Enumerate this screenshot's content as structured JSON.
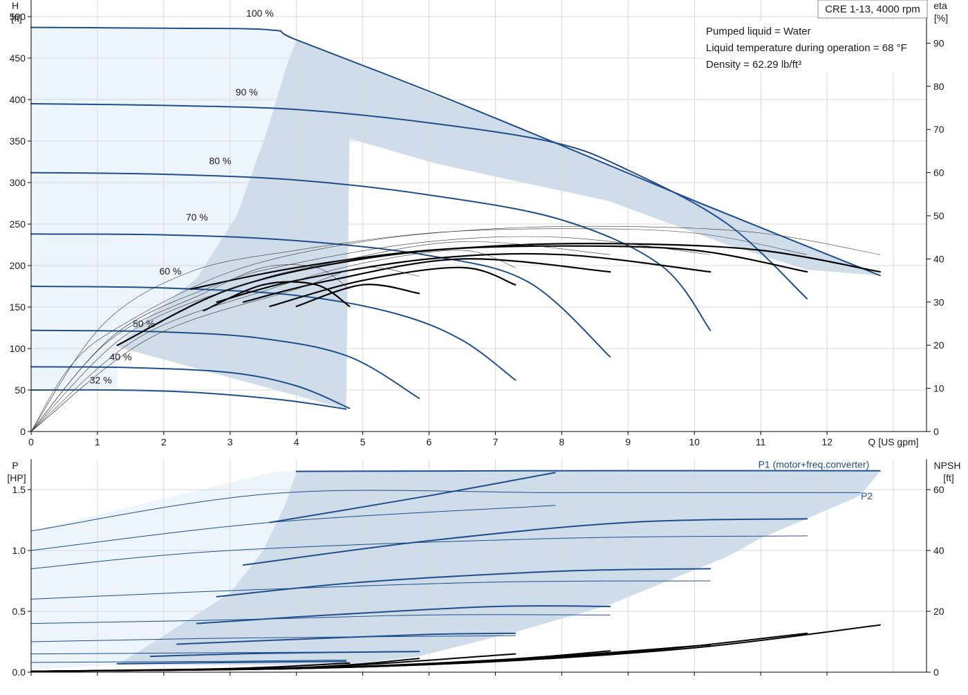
{
  "header": {
    "model": "CRE 1-13, 4000 rpm",
    "info_lines": [
      "Pumped liquid = Water",
      "Liquid temperature during operation = 68 °F",
      "Density = 62.29 lb/ft³"
    ]
  },
  "colors": {
    "curve_blue": "#1f4e8c",
    "region_fill": "#cfdce9",
    "region_light": "#ecf4fc",
    "grid": "#d9d9d9",
    "efficiency": "#000000",
    "thin_eff": "#333333"
  },
  "chart_data": [
    {
      "type": "line",
      "name": "head-efficiency",
      "y_title_top": "H",
      "y_unit": "[ft]",
      "y2_title": "eta",
      "y2_unit": "[%]",
      "xlabel": "Q [US gpm]",
      "xlim": [
        0,
        13.5
      ],
      "ylim": [
        0,
        520
      ],
      "y2lim": [
        0,
        100
      ],
      "x_ticks": [
        0,
        1,
        2,
        3,
        4,
        5,
        6,
        7,
        8,
        9,
        10,
        11,
        12
      ],
      "x_tick_labels": [
        "0",
        "1",
        "2",
        "3",
        "4",
        "5",
        "6",
        "7",
        "8",
        "9",
        "10",
        "11",
        "12"
      ],
      "y_ticks": [
        0,
        50,
        100,
        150,
        200,
        250,
        300,
        350,
        400,
        450,
        500
      ],
      "y_tick_labels": [
        "0",
        "50",
        "100",
        "150",
        "200",
        "250",
        "300",
        "350",
        "400",
        "450",
        "500"
      ],
      "y2_ticks": [
        0,
        10,
        20,
        30,
        40,
        50,
        60,
        70,
        80,
        90
      ],
      "y2_tick_labels": [
        "0",
        "10",
        "20",
        "30",
        "40",
        "50",
        "60",
        "70",
        "80",
        "90"
      ],
      "grid": true,
      "speed_labels": [
        {
          "text": "100 %",
          "x": 3.45,
          "y": 500
        },
        {
          "text": "90 %",
          "x": 3.25,
          "y": 405
        },
        {
          "text": "80 %",
          "x": 2.85,
          "y": 322
        },
        {
          "text": "70 %",
          "x": 2.5,
          "y": 254
        },
        {
          "text": "60 %",
          "x": 2.1,
          "y": 189
        },
        {
          "text": "50 %",
          "x": 1.7,
          "y": 126
        },
        {
          "text": "40 %",
          "x": 1.35,
          "y": 86
        },
        {
          "text": "32 %",
          "x": 1.05,
          "y": 58
        }
      ],
      "envelope": {
        "dark": [
          [
            1.3,
            102
          ],
          [
            1.8,
            140
          ],
          [
            2.5,
            185
          ],
          [
            3.1,
            260
          ],
          [
            3.55,
            360
          ],
          [
            3.85,
            440
          ],
          [
            4.0,
            472
          ],
          [
            7.9,
            348
          ],
          [
            12.8,
            188
          ],
          [
            11.7,
            195
          ],
          [
            10.5,
            225
          ],
          [
            8.7,
            278
          ],
          [
            7.3,
            302
          ],
          [
            6.1,
            323
          ],
          [
            4.8,
            353
          ],
          [
            4.75,
            27
          ]
        ],
        "light": [
          [
            0,
            0
          ],
          [
            0,
            487
          ],
          [
            3.6,
            484
          ],
          [
            4.0,
            472
          ],
          [
            3.85,
            440
          ],
          [
            3.55,
            360
          ],
          [
            3.1,
            260
          ],
          [
            2.5,
            185
          ],
          [
            1.8,
            140
          ],
          [
            1.3,
            102
          ],
          [
            1.3,
            52
          ],
          [
            0,
            52
          ]
        ]
      },
      "series": [
        {
          "name": "100 %",
          "kind": "head",
          "x": [
            0,
            2,
            3.6,
            4.0,
            6,
            7.9,
            10,
            12.8
          ],
          "values": [
            487,
            486,
            484,
            472,
            410,
            348,
            278,
            188
          ]
        },
        {
          "name": "90 %",
          "kind": "head",
          "x": [
            0,
            2,
            4,
            6,
            7.9,
            9,
            10.5,
            11.7
          ],
          "values": [
            395,
            393,
            388,
            372,
            348,
            315,
            250,
            160
          ]
        },
        {
          "name": "80 %",
          "kind": "head",
          "x": [
            0,
            2,
            4,
            6,
            8,
            9.5,
            10.24
          ],
          "values": [
            312,
            310,
            303,
            285,
            255,
            200,
            122
          ]
        },
        {
          "name": "70 %",
          "kind": "head",
          "x": [
            0,
            2,
            4,
            6,
            7.5,
            8.73
          ],
          "values": [
            238,
            237,
            230,
            212,
            180,
            90
          ]
        },
        {
          "name": "60 %",
          "kind": "head",
          "x": [
            0,
            2,
            4,
            5.5,
            6.5,
            7.3
          ],
          "values": [
            175,
            173,
            164,
            142,
            110,
            62
          ]
        },
        {
          "name": "50 %",
          "kind": "head",
          "x": [
            0,
            2,
            3.5,
            4.8,
            5.85
          ],
          "values": [
            122,
            120,
            112,
            90,
            40
          ]
        },
        {
          "name": "40 %",
          "kind": "head",
          "x": [
            0,
            1.5,
            3,
            4,
            4.8
          ],
          "values": [
            78,
            77,
            71,
            55,
            28
          ]
        },
        {
          "name": "32 %",
          "kind": "head",
          "x": [
            0,
            1.3,
            2.5,
            3.8,
            4.75
          ],
          "values": [
            50,
            50,
            47,
            38,
            27
          ]
        },
        {
          "name": "eta 100 %",
          "kind": "eta",
          "x": [
            1.3,
            3,
            5,
            7,
            9,
            11,
            12.8
          ],
          "values": [
            20,
            33,
            40,
            43,
            43.5,
            42,
            37
          ]
        },
        {
          "name": "eta 90 %",
          "kind": "eta",
          "x": [
            2.4,
            4,
            6,
            8,
            10,
            11.7
          ],
          "values": [
            33,
            38,
            42,
            43,
            42,
            37
          ]
        },
        {
          "name": "eta 80 %",
          "kind": "eta",
          "x": [
            2.8,
            4,
            6,
            8,
            10.24
          ],
          "values": [
            30,
            35,
            40,
            41,
            37
          ]
        },
        {
          "name": "eta 70 %",
          "kind": "eta",
          "x": [
            3.2,
            4.5,
            6.5,
            8.73
          ],
          "values": [
            30,
            35,
            40,
            37
          ]
        },
        {
          "name": "eta 60 %",
          "kind": "eta",
          "x": [
            3.6,
            5,
            6.5,
            7.3
          ],
          "values": [
            29,
            35,
            38,
            34
          ]
        },
        {
          "name": "eta 50 %",
          "kind": "eta",
          "x": [
            4.0,
            5,
            5.85
          ],
          "values": [
            29,
            34,
            32
          ]
        },
        {
          "name": "eta 40 %",
          "kind": "eta",
          "x": [
            2.6,
            3.5,
            4.3,
            4.8
          ],
          "values": [
            28,
            34,
            34,
            29
          ]
        }
      ]
    },
    {
      "type": "line",
      "name": "power-npsh",
      "y_title_top": "P",
      "y_unit": "[HP]",
      "y2_title": "NPSH",
      "y2_unit": "[ft]",
      "xlim": [
        0,
        13.5
      ],
      "ylim": [
        0,
        1.75
      ],
      "y2lim": [
        0,
        70
      ],
      "x_ticks": [
        0,
        1,
        2,
        3,
        4,
        5,
        6,
        7,
        8,
        9,
        10,
        11,
        12
      ],
      "y_ticks": [
        0,
        0.5,
        1.0,
        1.5
      ],
      "y_tick_labels": [
        "0.0",
        "0.5",
        "1.0",
        "1.5"
      ],
      "y2_ticks": [
        0,
        20,
        40,
        60
      ],
      "y2_tick_labels": [
        "0",
        "20",
        "40",
        "60"
      ],
      "grid": true,
      "series_labels": [
        {
          "text": "P1 (motor+freq.converter)",
          "x": 11.8,
          "y": 1.68
        },
        {
          "text": "P2",
          "x": 12.6,
          "y": 1.42
        }
      ],
      "envelope": {
        "dark": [
          [
            1.3,
            0.06
          ],
          [
            2.0,
            0.3
          ],
          [
            3.0,
            0.65
          ],
          [
            3.5,
            1.0
          ],
          [
            3.85,
            1.4
          ],
          [
            4.0,
            1.65
          ],
          [
            12.8,
            1.65
          ],
          [
            12.5,
            1.45
          ],
          [
            11.0,
            1.1
          ],
          [
            10.5,
            0.95
          ],
          [
            8.7,
            0.55
          ],
          [
            7.3,
            0.33
          ],
          [
            5.85,
            0.13
          ],
          [
            4.75,
            0.06
          ]
        ],
        "light": [
          [
            0,
            0.02
          ],
          [
            0,
            1.16
          ],
          [
            3.7,
            1.65
          ],
          [
            4.0,
            1.65
          ],
          [
            3.85,
            1.4
          ],
          [
            3.5,
            1.0
          ],
          [
            3.0,
            0.65
          ],
          [
            2.0,
            0.3
          ],
          [
            1.3,
            0.06
          ],
          [
            0,
            0.02
          ]
        ]
      },
      "series": [
        {
          "name": "P1 100 %",
          "kind": "p1",
          "x": [
            4.0,
            8,
            12.8
          ],
          "values": [
            1.65,
            1.655,
            1.655
          ]
        },
        {
          "name": "P1 90 %",
          "kind": "p1",
          "x": [
            3.6,
            6,
            7.9
          ],
          "values": [
            1.23,
            1.45,
            1.64
          ]
        },
        {
          "name": "P1 80 %",
          "kind": "p1",
          "x": [
            3.2,
            6,
            9,
            11.7
          ],
          "values": [
            0.88,
            1.08,
            1.23,
            1.26
          ]
        },
        {
          "name": "P1 70 %",
          "kind": "p1",
          "x": [
            2.8,
            5,
            8,
            10.24
          ],
          "values": [
            0.62,
            0.74,
            0.83,
            0.85
          ]
        },
        {
          "name": "P1 60 %",
          "kind": "p1",
          "x": [
            2.5,
            4.5,
            7,
            8.73
          ],
          "values": [
            0.4,
            0.47,
            0.54,
            0.54
          ]
        },
        {
          "name": "P1 50 %",
          "kind": "p1",
          "x": [
            2.2,
            4,
            6,
            7.3
          ],
          "values": [
            0.23,
            0.27,
            0.31,
            0.32
          ]
        },
        {
          "name": "P1 40 %",
          "kind": "p1",
          "x": [
            1.8,
            3.5,
            5.85
          ],
          "values": [
            0.13,
            0.155,
            0.17
          ]
        },
        {
          "name": "P1 32 %",
          "kind": "p1",
          "x": [
            1.3,
            3,
            4.75
          ],
          "values": [
            0.07,
            0.08,
            0.09
          ]
        },
        {
          "name": "P2 100 %",
          "kind": "p2",
          "x": [
            0,
            3.7,
            8,
            12.5
          ],
          "values": [
            1.16,
            1.47,
            1.475,
            1.475
          ]
        },
        {
          "name": "P2 90 %",
          "kind": "p2",
          "x": [
            0,
            3.6,
            7.9
          ],
          "values": [
            1.0,
            1.23,
            1.37
          ]
        },
        {
          "name": "P2 80 %",
          "kind": "p2",
          "x": [
            0,
            3,
            8,
            11.7
          ],
          "values": [
            0.85,
            1.0,
            1.1,
            1.12
          ]
        },
        {
          "name": "P2 70 %",
          "kind": "p2",
          "x": [
            0,
            3,
            7,
            10.24
          ],
          "values": [
            0.6,
            0.67,
            0.74,
            0.75
          ]
        },
        {
          "name": "P2 60 %",
          "kind": "p2",
          "x": [
            0,
            3,
            6,
            8.73
          ],
          "values": [
            0.4,
            0.43,
            0.47,
            0.47
          ]
        },
        {
          "name": "P2 50 %",
          "kind": "p2",
          "x": [
            0,
            3,
            7.3
          ],
          "values": [
            0.25,
            0.28,
            0.3
          ]
        },
        {
          "name": "P2 40 %",
          "kind": "p2",
          "x": [
            0,
            3,
            5.85
          ],
          "values": [
            0.15,
            0.16,
            0.17
          ]
        },
        {
          "name": "P2 32 %",
          "kind": "p2",
          "x": [
            0,
            3,
            4.75
          ],
          "values": [
            0.08,
            0.09,
            0.1
          ]
        },
        {
          "name": "NPSH 100 %",
          "kind": "npsh",
          "x": [
            0,
            4,
            7,
            10,
            12.8
          ],
          "values": [
            0.3,
            1.2,
            3.5,
            8.0,
            15.5
          ]
        },
        {
          "name": "NPSH 90 %",
          "kind": "npsh",
          "x": [
            0,
            4,
            7,
            9.5,
            11.7
          ],
          "values": [
            0.3,
            1.2,
            3.5,
            7.5,
            12.8
          ]
        },
        {
          "name": "NPSH 80 %",
          "kind": "npsh",
          "x": [
            0,
            4,
            7,
            10.24
          ],
          "values": [
            0.3,
            1.2,
            3.8,
            9.0
          ]
        },
        {
          "name": "NPSH 70 %",
          "kind": "npsh",
          "x": [
            0,
            4,
            7,
            8.73
          ],
          "values": [
            0.3,
            1.3,
            4.0,
            7.0
          ]
        },
        {
          "name": "NPSH 60 %",
          "kind": "npsh",
          "x": [
            0,
            4,
            7.3
          ],
          "values": [
            0.3,
            1.4,
            6.0
          ]
        },
        {
          "name": "NPSH 50 %",
          "kind": "npsh",
          "x": [
            0,
            4,
            5.85
          ],
          "values": [
            0.3,
            1.5,
            4.5
          ]
        },
        {
          "name": "NPSH 40 %",
          "kind": "npsh",
          "x": [
            0,
            3,
            4.8
          ],
          "values": [
            0.3,
            1.2,
            3.0
          ]
        }
      ]
    }
  ]
}
